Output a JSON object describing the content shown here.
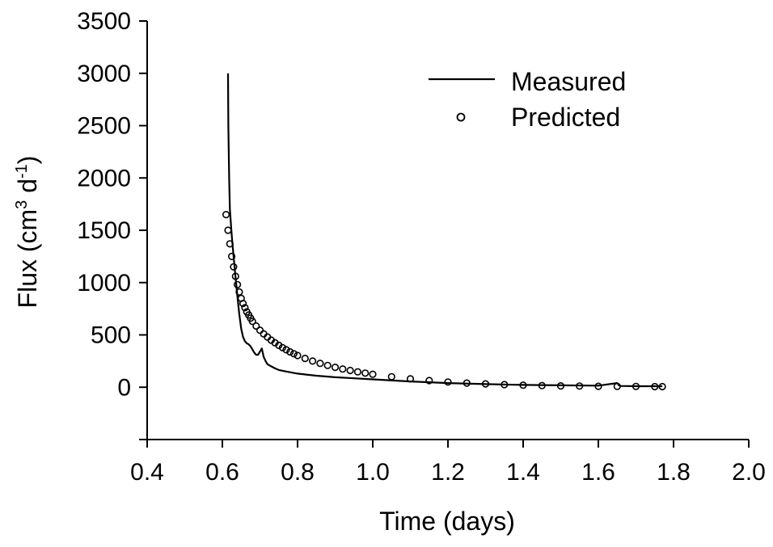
{
  "chart_data": {
    "type": "line",
    "title": "",
    "xlabel": "Time (days)",
    "ylabel": {
      "prefix": "Flux (cm",
      "sup1": "3",
      "mid": " d",
      "sup2": "-1",
      "suffix": ")"
    },
    "xlim": [
      0.4,
      2.0
    ],
    "ylim": [
      -500,
      3500
    ],
    "x_ticks": [
      0.4,
      0.6,
      0.8,
      1.0,
      1.2,
      1.4,
      1.6,
      1.8,
      2.0
    ],
    "x_tick_labels": [
      "0.4",
      "0.6",
      "0.8",
      "1.0",
      "1.2",
      "1.4",
      "1.6",
      "1.8",
      "2.0"
    ],
    "y_ticks": [
      0,
      500,
      1000,
      1500,
      2000,
      2500,
      3000,
      3500
    ],
    "y_tick_labels": [
      "0",
      "500",
      "1000",
      "1500",
      "2000",
      "2500",
      "3000",
      "3500"
    ],
    "grid": false,
    "legend_position": "top-right",
    "series": [
      {
        "name": "Measured",
        "style": "line",
        "color": "#000000",
        "x": [
          0.615,
          0.616,
          0.618,
          0.62,
          0.625,
          0.63,
          0.635,
          0.64,
          0.645,
          0.65,
          0.655,
          0.66,
          0.665,
          0.67,
          0.675,
          0.68,
          0.685,
          0.69,
          0.695,
          0.7,
          0.705,
          0.71,
          0.715,
          0.72,
          0.73,
          0.74,
          0.75,
          0.77,
          0.8,
          0.85,
          0.9,
          0.95,
          1.0,
          1.1,
          1.2,
          1.3,
          1.4,
          1.5,
          1.6,
          1.65,
          1.655,
          1.66,
          1.7,
          1.77
        ],
        "y": [
          3000,
          2500,
          2000,
          1700,
          1450,
          1250,
          1050,
          870,
          700,
          560,
          480,
          440,
          420,
          410,
          390,
          360,
          330,
          310,
          310,
          340,
          370,
          290,
          250,
          220,
          200,
          180,
          165,
          150,
          130,
          110,
          95,
          85,
          75,
          55,
          40,
          30,
          22,
          18,
          15,
          40,
          18,
          12,
          10,
          10
        ]
      },
      {
        "name": "Predicted",
        "style": "open-circle",
        "color": "#000000",
        "x": [
          0.61,
          0.615,
          0.62,
          0.625,
          0.63,
          0.635,
          0.64,
          0.645,
          0.65,
          0.655,
          0.66,
          0.665,
          0.67,
          0.675,
          0.68,
          0.69,
          0.7,
          0.71,
          0.72,
          0.73,
          0.74,
          0.75,
          0.76,
          0.77,
          0.78,
          0.79,
          0.8,
          0.82,
          0.84,
          0.86,
          0.88,
          0.9,
          0.92,
          0.94,
          0.96,
          0.98,
          1.0,
          1.05,
          1.1,
          1.15,
          1.2,
          1.25,
          1.3,
          1.35,
          1.4,
          1.45,
          1.5,
          1.55,
          1.6,
          1.65,
          1.7,
          1.75,
          1.77
        ],
        "y": [
          1650,
          1500,
          1370,
          1250,
          1150,
          1060,
          980,
          910,
          850,
          800,
          760,
          720,
          690,
          660,
          630,
          585,
          545,
          510,
          480,
          450,
          425,
          400,
          378,
          358,
          338,
          320,
          303,
          275,
          250,
          228,
          208,
          190,
          174,
          160,
          147,
          135,
          124,
          100,
          80,
          64,
          50,
          40,
          32,
          25,
          20,
          16,
          13,
          11,
          9,
          8,
          7,
          6,
          6
        ]
      }
    ]
  }
}
